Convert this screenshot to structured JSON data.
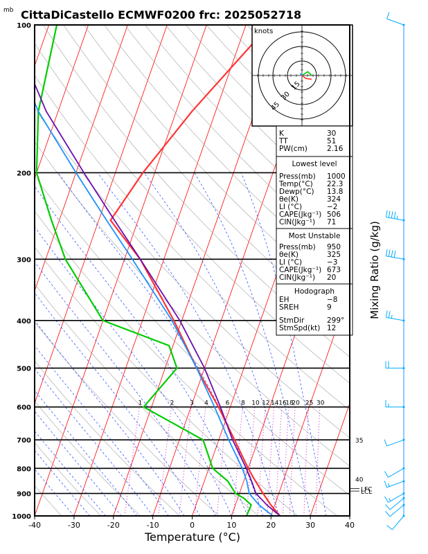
{
  "chart_data": {
    "type": "line",
    "title": "CittaDiCastello ECMWF0200 frc: 2025052718",
    "pressure_unit": "mb",
    "xlabel": "Temperature (°C)",
    "right_label": "Mixing Ratio (g/kg)",
    "xlim": [
      -40,
      40
    ],
    "plim": [
      1000,
      100
    ],
    "x_ticks": [
      "-40",
      "-30",
      "-20",
      "-10",
      "0",
      "10",
      "20",
      "30",
      "40"
    ],
    "p_ticks": [
      {
        "p": 100,
        "label": "100"
      },
      {
        "p": 200,
        "label": "200"
      },
      {
        "p": 300,
        "label": "300"
      },
      {
        "p": 400,
        "label": "400"
      },
      {
        "p": 500,
        "label": "500"
      },
      {
        "p": 600,
        "label": "600"
      },
      {
        "p": 700,
        "label": "700"
      },
      {
        "p": 800,
        "label": "800"
      },
      {
        "p": 900,
        "label": "900"
      },
      {
        "p": 1000,
        "label": "1000"
      }
    ],
    "mixing_ratio_labels": [
      "1",
      "2",
      "3",
      "4",
      "6",
      "8",
      "10",
      "12",
      "14",
      "16",
      "18",
      "20",
      "25",
      "30"
    ],
    "theta_e_labels": [
      {
        "p": 700,
        "label": "35"
      },
      {
        "p": 840,
        "label": "40"
      }
    ],
    "level_labels": [
      "LFC",
      "LCL"
    ],
    "series": [
      {
        "role": "temperature",
        "color": "#ff3333",
        "points": [
          [
            1000,
            22.3
          ],
          [
            950,
            19
          ],
          [
            900,
            16
          ],
          [
            850,
            13
          ],
          [
            800,
            10
          ],
          [
            700,
            4
          ],
          [
            600,
            -3
          ],
          [
            500,
            -12
          ],
          [
            400,
            -22
          ],
          [
            300,
            -36
          ],
          [
            250,
            -47
          ],
          [
            200,
            -43
          ],
          [
            150,
            -36
          ],
          [
            100,
            -24
          ]
        ]
      },
      {
        "role": "dewpoint",
        "color": "#00cc00",
        "points": [
          [
            1000,
            13.8
          ],
          [
            950,
            14
          ],
          [
            920,
            11.5
          ],
          [
            900,
            9
          ],
          [
            850,
            6
          ],
          [
            800,
            1
          ],
          [
            700,
            -4
          ],
          [
            600,
            -22
          ],
          [
            500,
            -17
          ],
          [
            450,
            -21
          ],
          [
            400,
            -40
          ],
          [
            300,
            -55
          ],
          [
            250,
            -62
          ],
          [
            200,
            -70
          ],
          [
            150,
            -75
          ],
          [
            100,
            -78
          ]
        ]
      },
      {
        "role": "parcel",
        "color": "#6a0dad",
        "points": [
          [
            1000,
            22.3
          ],
          [
            950,
            18
          ],
          [
            900,
            14.2
          ],
          [
            850,
            12
          ],
          [
            800,
            9.5
          ],
          [
            700,
            3.5
          ],
          [
            600,
            -2.5
          ],
          [
            500,
            -10
          ],
          [
            400,
            -20.5
          ],
          [
            300,
            -36
          ],
          [
            250,
            -46
          ],
          [
            200,
            -58
          ],
          [
            150,
            -73
          ],
          [
            100,
            -90
          ]
        ]
      },
      {
        "role": "parcel-virtual",
        "color": "#1e90ff",
        "points": [
          [
            1000,
            20.5
          ],
          [
            950,
            16
          ],
          [
            900,
            12.5
          ],
          [
            850,
            10.8
          ],
          [
            800,
            8.5
          ],
          [
            700,
            2.5
          ],
          [
            600,
            -4
          ],
          [
            500,
            -12
          ],
          [
            400,
            -22.5
          ],
          [
            300,
            -38
          ],
          [
            250,
            -48
          ],
          [
            200,
            -60
          ],
          [
            150,
            -75
          ],
          [
            100,
            -92
          ]
        ]
      }
    ],
    "hodograph": {
      "unit_label": "knots",
      "ring_labels": [
        "15",
        "30",
        "45"
      ],
      "ring_speeds": [
        15,
        30,
        45
      ],
      "lines": [
        {
          "color": "#00cc00",
          "points": [
            [
              0,
              0
            ],
            [
              6,
              4
            ],
            [
              10,
              0
            ]
          ]
        },
        {
          "color": "#ff3333",
          "points": [
            [
              0,
              0
            ],
            [
              4,
              -3
            ],
            [
              10,
              -4
            ]
          ]
        },
        {
          "color": "#1e90ff",
          "points": [
            [
              0,
              0
            ],
            [
              -2,
              2
            ]
          ]
        }
      ]
    },
    "wind_barbs": [
      {
        "p": 100,
        "speed": 10,
        "dir": 290
      },
      {
        "p": 250,
        "speed": 45,
        "dir": 280
      },
      {
        "p": 300,
        "speed": 40,
        "dir": 280
      },
      {
        "p": 400,
        "speed": 25,
        "dir": 280
      },
      {
        "p": 500,
        "speed": 20,
        "dir": 270
      },
      {
        "p": 600,
        "speed": 15,
        "dir": 270
      },
      {
        "p": 700,
        "speed": 10,
        "dir": 250
      },
      {
        "p": 800,
        "speed": 10,
        "dir": 240
      },
      {
        "p": 850,
        "speed": 15,
        "dir": 250
      },
      {
        "p": 900,
        "speed": 15,
        "dir": 240
      },
      {
        "p": 920,
        "speed": 10,
        "dir": 230
      },
      {
        "p": 950,
        "speed": 10,
        "dir": 230
      },
      {
        "p": 1000,
        "speed": 10,
        "dir": 220
      }
    ]
  },
  "indices": {
    "general": [
      {
        "label": "K",
        "value": "30"
      },
      {
        "label": "TT",
        "value": "51"
      },
      {
        "label": "PW(cm)",
        "value": "2.16"
      }
    ],
    "lowest_level": {
      "header": "Lowest level",
      "rows": [
        {
          "label": "Press(mb)",
          "value": "1000"
        },
        {
          "label": "Temp(°C)",
          "value": "22.3"
        },
        {
          "label": "Dewp(°C)",
          "value": "13.8"
        },
        {
          "label": "θe(K)",
          "value": "324"
        },
        {
          "label": "LI (°C)",
          "value": "−2"
        },
        {
          "label": "CAPE(Jkg⁻¹)",
          "value": "506"
        },
        {
          "label": "CIN(Jkg⁻¹)",
          "value": "71"
        }
      ]
    },
    "most_unstable": {
      "header": "Most Unstable",
      "rows": [
        {
          "label": "Press(mb)",
          "value": "950"
        },
        {
          "label": "θe(K)",
          "value": "325"
        },
        {
          "label": "LI (°C)",
          "value": "−3"
        },
        {
          "label": "CAPE(Jkg⁻¹)",
          "value": "673"
        },
        {
          "label": "CIN(Jkg⁻¹)",
          "value": "20"
        }
      ]
    },
    "hodograph": {
      "header": "Hodograph",
      "rows": [
        {
          "label": "EH",
          "value": "−8"
        },
        {
          "label": "SREH",
          "value": "9"
        },
        {
          "label": "StmDir",
          "value": "299°"
        },
        {
          "label": "StmSpd(kt)",
          "value": "12"
        }
      ]
    }
  },
  "colors": {
    "isotherm": "#ff0000",
    "dry_adiabat": "#a0a0a0",
    "moist_adiabat": "#1e40ff",
    "mixing_ratio": "#cc00cc",
    "wind_barb": "#00aaff"
  }
}
